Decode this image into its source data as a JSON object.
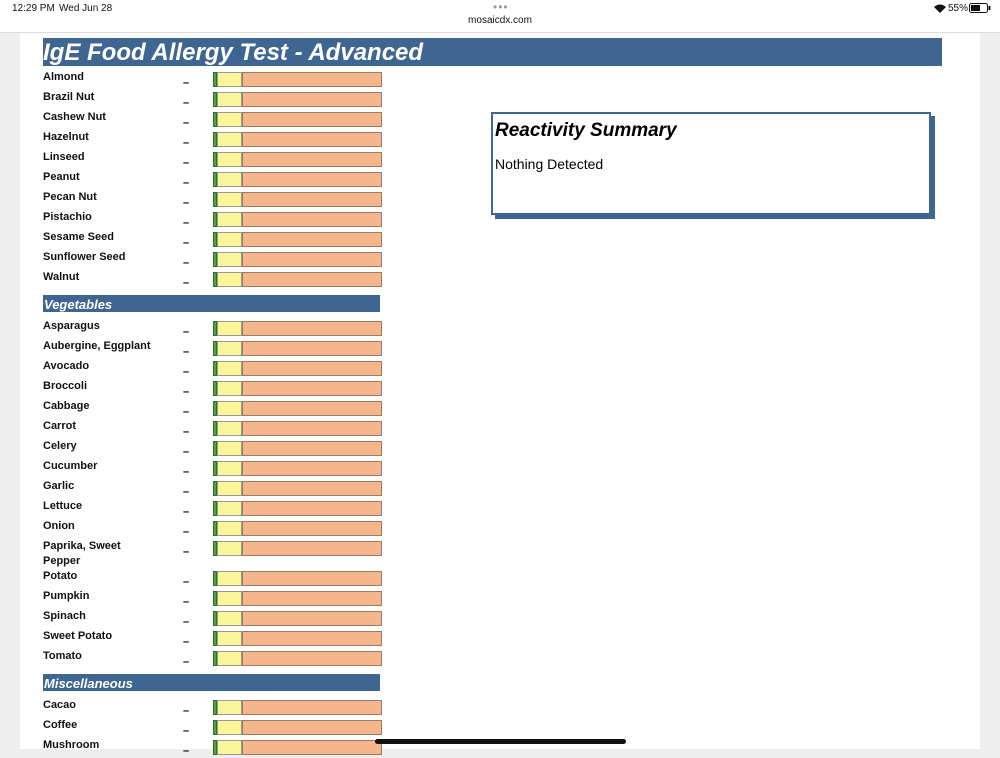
{
  "status_bar": {
    "time": "12:29 PM",
    "date": "Wed Jun 28",
    "url": "mosaicdx.com",
    "battery": "55%"
  },
  "header": {
    "title": "IgE Food Allergy Test - Advanced"
  },
  "sections": [
    {
      "items": [
        {
          "name": "Almond",
          "result": "–"
        },
        {
          "name": "Brazil Nut",
          "result": "–"
        },
        {
          "name": "Cashew Nut",
          "result": "–"
        },
        {
          "name": "Hazelnut",
          "result": "–"
        },
        {
          "name": "Linseed",
          "result": "–"
        },
        {
          "name": "Peanut",
          "result": "–"
        },
        {
          "name": "Pecan Nut",
          "result": "–"
        },
        {
          "name": "Pistachio",
          "result": "–"
        },
        {
          "name": "Sesame Seed",
          "result": "–"
        },
        {
          "name": "Sunflower Seed",
          "result": "–"
        },
        {
          "name": "Walnut",
          "result": "–"
        }
      ]
    },
    {
      "title": "Vegetables",
      "items": [
        {
          "name": "Asparagus",
          "result": "–"
        },
        {
          "name": "Aubergine, Eggplant",
          "result": "–"
        },
        {
          "name": "Avocado",
          "result": "–"
        },
        {
          "name": "Broccoli",
          "result": "–"
        },
        {
          "name": "Cabbage",
          "result": "–"
        },
        {
          "name": "Carrot",
          "result": "–"
        },
        {
          "name": "Celery",
          "result": "–"
        },
        {
          "name": "Cucumber",
          "result": "–"
        },
        {
          "name": "Garlic",
          "result": "–"
        },
        {
          "name": "Lettuce",
          "result": "–"
        },
        {
          "name": "Onion",
          "result": "–"
        },
        {
          "name": "Paprika, Sweet Pepper",
          "result": "–"
        },
        {
          "name": "Potato",
          "result": "–"
        },
        {
          "name": "Pumpkin",
          "result": "–"
        },
        {
          "name": "Spinach",
          "result": "–"
        },
        {
          "name": "Sweet Potato",
          "result": "–"
        },
        {
          "name": "Tomato",
          "result": "–"
        }
      ]
    },
    {
      "title": "Miscellaneous",
      "items": [
        {
          "name": "Cacao",
          "result": "–"
        },
        {
          "name": "Coffee",
          "result": "–"
        },
        {
          "name": "Mushroom",
          "result": "–"
        }
      ]
    }
  ],
  "summary": {
    "title": "Reactivity Summary",
    "text": "Nothing Detected"
  }
}
